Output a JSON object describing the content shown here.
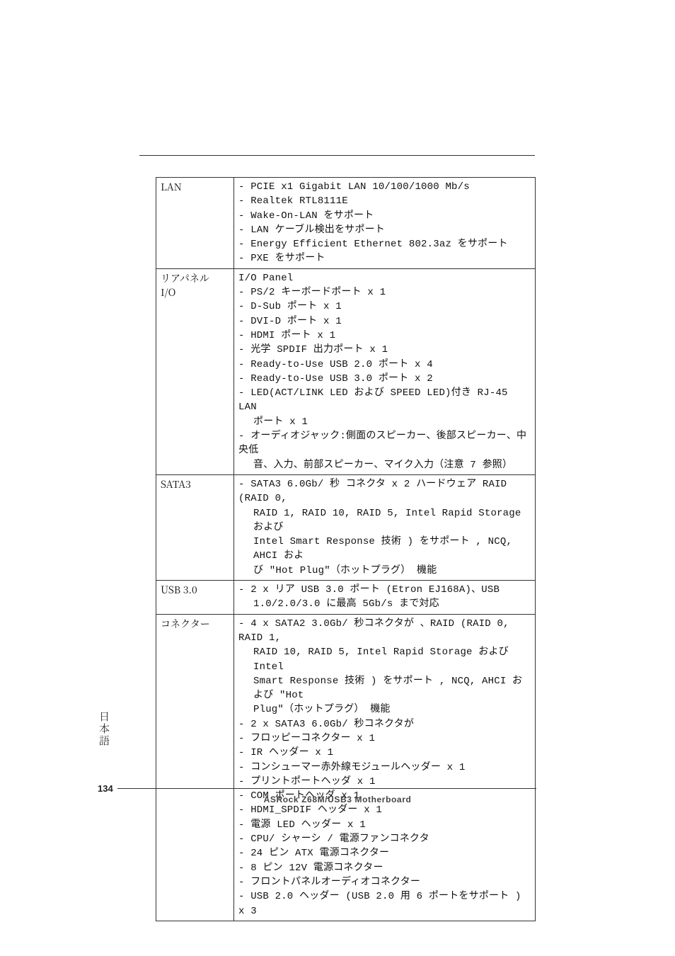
{
  "page_number": "134",
  "footer_model": "ASRock  Z68M/USB3  Motherboard",
  "side_label": "日本語",
  "table": {
    "rows": [
      {
        "key": "LAN",
        "lines": [
          "- PCIE x1 Gigabit LAN 10/100/1000 Mb/s",
          "- Realtek RTL8111E",
          "- Wake-On-LAN をサポート",
          "- LAN ケーブル検出をサポート",
          "- Energy Efficient Ethernet 802.3az をサポート",
          "- PXE をサポート"
        ]
      },
      {
        "key": "リアパネル\nI/O",
        "lines": [
          "I/O Panel",
          "- PS/2 キーボードポート x 1",
          "- D-Sub ポート x 1",
          "- DVI-D ポート x 1",
          "- HDMI ポート x 1",
          "- 光学 SPDIF 出力ポート x 1",
          "- Ready-to-Use USB 2.0 ポート x 4",
          "- Ready-to-Use USB 3.0 ポート x 2",
          "- LED(ACT/LINK LED および SPEED LED)付き RJ-45 LAN",
          "  ポート x 1",
          "- オーディオジャック:側面のスピーカー、後部スピーカー、中央低",
          "  音、入力、前部スピーカー、マイク入力（注意 7 参照）"
        ]
      },
      {
        "key": "SATA3",
        "lines": [
          "- SATA3 6.0Gb/ 秒 コネクタ x 2 ハードウェア RAID (RAID 0,",
          "  RAID 1, RAID 10, RAID 5, Intel Rapid Storage および",
          "  Intel Smart Response 技術 ) をサポート , NCQ, AHCI およ",
          "  び \"Hot Plug\"（ホットプラグ） 機能"
        ]
      },
      {
        "key": "USB 3.0",
        "lines": [
          "- 2 x リア USB 3.0 ポート (Etron EJ168A)、USB",
          "  1.0/2.0/3.0 に最高 5Gb/s まで対応"
        ]
      },
      {
        "key": "コネクター",
        "lines": [
          "- 4 x SATA2 3.0Gb/ 秒コネクタが 、RAID (RAID 0, RAID 1,",
          "  RAID 10, RAID 5, Intel Rapid Storage および Intel",
          "  Smart Response 技術 ) をサポート , NCQ, AHCI および \"Hot",
          "  Plug\"（ホットプラグ） 機能",
          "- 2 x SATA3 6.0Gb/ 秒コネクタが",
          "- フロッピーコネクター x 1",
          "- IR ヘッダー x 1",
          "- コンシューマー赤外線モジュールヘッダー x 1",
          "- プリントポートヘッダ x 1",
          "- COM ポートヘッダ x 1",
          "- HDMI_SPDIF ヘッダー x 1",
          "- 電源 LED ヘッダー  x 1",
          "- CPU/ シャーシ / 電源ファンコネクタ",
          "- 24 ピン ATX 電源コネクター",
          "- 8 ピン 12V 電源コネクター",
          "- フロントパネルオーディオコネクター",
          "- USB 2.0 ヘッダー (USB 2.0 用 6 ポートをサポート ) x 3"
        ]
      }
    ]
  }
}
